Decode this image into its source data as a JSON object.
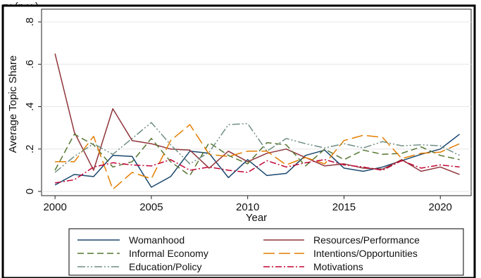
{
  "chart_data": {
    "type": "line",
    "title": "",
    "title_fragment": "ry (p     y     )",
    "xlabel": "Year",
    "ylabel": "Average Topic Share",
    "xlim": [
      1999.3,
      2021.6
    ],
    "ylim": [
      -0.02,
      0.86
    ],
    "x_ticks": [
      2000,
      2005,
      2010,
      2015,
      2020
    ],
    "x_tick_labels": [
      "2000",
      "2005",
      "2010",
      "2015",
      "2020"
    ],
    "y_ticks": [
      0,
      0.2,
      0.4,
      0.6,
      0.8
    ],
    "y_tick_labels": [
      "0",
      ".2",
      ".4",
      ".6",
      ".8"
    ],
    "grid": "horizontal",
    "legend_position": "bottom",
    "x": [
      2000,
      2001,
      2002,
      2003,
      2004,
      2005,
      2006,
      2007,
      2008,
      2009,
      2010,
      2011,
      2012,
      2013,
      2014,
      2015,
      2016,
      2017,
      2018,
      2019,
      2020,
      2021
    ],
    "series": [
      {
        "name": "Womanhood",
        "color": "#1a476f",
        "dash": "",
        "values": [
          0.03,
          0.08,
          0.07,
          0.17,
          0.165,
          0.02,
          0.07,
          0.19,
          0.18,
          0.065,
          0.15,
          0.075,
          0.085,
          0.17,
          0.195,
          0.11,
          0.095,
          0.115,
          0.145,
          0.175,
          0.2,
          0.27
        ]
      },
      {
        "name": "Resources/Performance",
        "color": "#90353b",
        "dash": "",
        "values": [
          0.65,
          0.28,
          0.1,
          0.39,
          0.24,
          0.225,
          0.2,
          0.195,
          0.11,
          0.19,
          0.14,
          0.18,
          0.2,
          0.16,
          0.12,
          0.13,
          0.11,
          0.105,
          0.15,
          0.095,
          0.115,
          0.08
        ]
      },
      {
        "name": "Informal Economy",
        "color": "#55752f",
        "dash": "9 5",
        "values": [
          0.1,
          0.27,
          0.22,
          0.115,
          0.14,
          0.25,
          0.14,
          0.075,
          0.23,
          0.17,
          0.13,
          0.23,
          0.22,
          0.12,
          0.2,
          0.15,
          0.195,
          0.175,
          0.18,
          0.21,
          0.17,
          0.15
        ]
      },
      {
        "name": "Intentions/Opportunities",
        "color": "#e37e00",
        "dash": "16 6",
        "values": [
          0.14,
          0.14,
          0.26,
          0.01,
          0.09,
          0.06,
          0.24,
          0.315,
          0.175,
          0.165,
          0.19,
          0.19,
          0.125,
          0.16,
          0.13,
          0.24,
          0.265,
          0.255,
          0.155,
          0.18,
          0.185,
          0.225
        ]
      },
      {
        "name": "Education/Policy",
        "color": "#6e8e84",
        "dash": "11 3 2 3 2 3",
        "values": [
          0.09,
          0.165,
          0.225,
          0.175,
          0.25,
          0.325,
          0.22,
          0.13,
          0.185,
          0.315,
          0.32,
          0.19,
          0.25,
          0.225,
          0.205,
          0.225,
          0.205,
          0.235,
          0.215,
          0.22,
          0.215,
          0.17
        ]
      },
      {
        "name": "Motivations",
        "color": "#c10534",
        "dash": "9 3 2 3",
        "values": [
          0.04,
          0.055,
          0.115,
          0.135,
          0.125,
          0.12,
          0.15,
          0.1,
          0.115,
          0.1,
          0.09,
          0.145,
          0.115,
          0.135,
          0.15,
          0.125,
          0.115,
          0.1,
          0.145,
          0.11,
          0.125,
          0.115
        ]
      }
    ]
  }
}
